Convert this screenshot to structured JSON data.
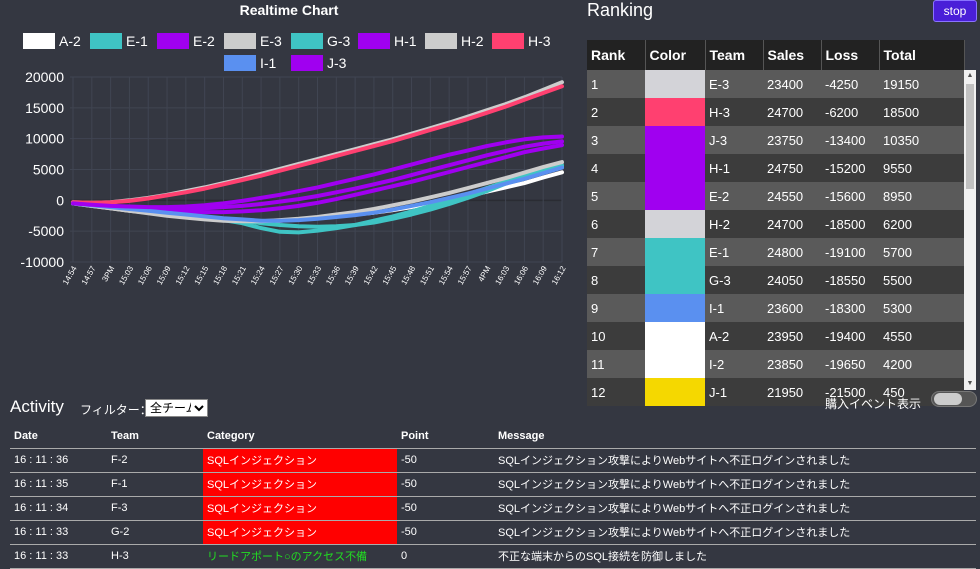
{
  "chart": {
    "title": "Realtime Chart"
  },
  "chart_data": {
    "type": "line",
    "title": "Realtime Chart",
    "ylim": [
      -10000,
      20000
    ],
    "y_ticks": [
      20000,
      15000,
      10000,
      5000,
      0,
      -5000,
      -10000
    ],
    "x_tick_labels": [
      "14:54",
      "14:57",
      "3PM",
      "15:03",
      "15:06",
      "15:09",
      "15:12",
      "15:15",
      "15:18",
      "15:21",
      "15:24",
      "15:27",
      "15:30",
      "15:33",
      "15:36",
      "15:39",
      "15:42",
      "15:45",
      "15:48",
      "15:51",
      "15:54",
      "15:57",
      "4PM",
      "16:03",
      "16:06",
      "16:09",
      "16:12"
    ],
    "legend_position": "top",
    "series": [
      {
        "name": "A-2",
        "color": "#ffffff",
        "values": [
          -500,
          -900,
          -1300,
          -1700,
          -2000,
          -2300,
          -2600,
          -2900,
          -3100,
          -3300,
          -3400,
          -3300,
          -3100,
          -2900,
          -2600,
          -2300,
          -2000,
          -1600,
          -1100,
          -500,
          100,
          700,
          1400,
          2100,
          2800,
          3700,
          4550
        ]
      },
      {
        "name": "E-1",
        "color": "#3fc4c4",
        "values": [
          -500,
          -900,
          -1200,
          -1500,
          -1800,
          -2100,
          -2400,
          -2700,
          -3000,
          -3300,
          -3700,
          -4000,
          -4200,
          -4300,
          -4200,
          -4000,
          -3600,
          -3000,
          -2300,
          -1500,
          -600,
          400,
          1500,
          2700,
          3800,
          4800,
          5700
        ]
      },
      {
        "name": "E-2",
        "color": "#a000f0",
        "values": [
          -500,
          -800,
          -1100,
          -1300,
          -1500,
          -1700,
          -1800,
          -1900,
          -1900,
          -1800,
          -1600,
          -1300,
          -900,
          -400,
          200,
          900,
          1600,
          2300,
          3000,
          3800,
          4600,
          5400,
          6200,
          7000,
          7800,
          8400,
          8950
        ]
      },
      {
        "name": "E-3",
        "color": "#cccccc",
        "values": [
          -300,
          -400,
          -300,
          0,
          400,
          900,
          1500,
          2100,
          2800,
          3500,
          4300,
          5100,
          5900,
          6700,
          7500,
          8300,
          9100,
          9900,
          10800,
          11700,
          12600,
          13600,
          14600,
          15600,
          16700,
          17900,
          19150
        ]
      },
      {
        "name": "G-3",
        "color": "#3fc4c4",
        "values": [
          -500,
          -800,
          -1100,
          -1400,
          -1700,
          -2000,
          -2400,
          -2800,
          -3200,
          -3700,
          -4500,
          -5100,
          -5200,
          -4900,
          -4500,
          -4000,
          -3300,
          -2600,
          -1800,
          -900,
          0,
          1000,
          2000,
          3000,
          4000,
          4800,
          5500
        ]
      },
      {
        "name": "H-1",
        "color": "#a000f0",
        "values": [
          -500,
          -700,
          -900,
          -1100,
          -1300,
          -1400,
          -1400,
          -1300,
          -1100,
          -900,
          -600,
          -200,
          200,
          700,
          1300,
          1900,
          2600,
          3300,
          4100,
          4900,
          5700,
          6500,
          7300,
          8000,
          8700,
          9200,
          9550
        ]
      },
      {
        "name": "H-2",
        "color": "#cccccc",
        "values": [
          -500,
          -900,
          -1300,
          -1700,
          -2100,
          -2500,
          -2800,
          -3100,
          -3300,
          -3400,
          -3400,
          -3200,
          -3000,
          -2700,
          -2300,
          -1900,
          -1400,
          -800,
          -200,
          500,
          1200,
          2000,
          2800,
          3600,
          4500,
          5400,
          6200
        ]
      },
      {
        "name": "H-3",
        "color": "#ff4070",
        "values": [
          -300,
          -400,
          -300,
          -100,
          300,
          800,
          1300,
          1900,
          2600,
          3300,
          4000,
          4800,
          5600,
          6400,
          7200,
          8000,
          8800,
          9600,
          10500,
          11400,
          12300,
          13200,
          14200,
          15200,
          16300,
          17400,
          18500
        ]
      },
      {
        "name": "I-1",
        "color": "#5a90f0",
        "values": [
          -500,
          -800,
          -1100,
          -1400,
          -1700,
          -2000,
          -2300,
          -2600,
          -2900,
          -3100,
          -3300,
          -3300,
          -3200,
          -3000,
          -2700,
          -2400,
          -2000,
          -1500,
          -900,
          -300,
          400,
          1100,
          1900,
          2700,
          3500,
          4400,
          5300
        ]
      },
      {
        "name": "J-3",
        "color": "#a000f0",
        "values": [
          -500,
          -700,
          -900,
          -1000,
          -1100,
          -1100,
          -1000,
          -800,
          -500,
          -100,
          400,
          900,
          1500,
          2100,
          2800,
          3500,
          4200,
          5000,
          5800,
          6600,
          7400,
          8100,
          8800,
          9400,
          9900,
          10200,
          10350
        ]
      }
    ]
  },
  "ranking": {
    "title": "Ranking",
    "headers": [
      "Rank",
      "Color",
      "Team",
      "Sales",
      "Loss",
      "Total"
    ],
    "rows": [
      {
        "rank": "1",
        "color": "#d3d3d8",
        "team": "E-3",
        "sales": "23400",
        "loss": "-4250",
        "total": "19150"
      },
      {
        "rank": "2",
        "color": "#ff4070",
        "team": "H-3",
        "sales": "24700",
        "loss": "-6200",
        "total": "18500"
      },
      {
        "rank": "3",
        "color": "#a000f0",
        "team": "J-3",
        "sales": "23750",
        "loss": "-13400",
        "total": "10350"
      },
      {
        "rank": "4",
        "color": "#a000f0",
        "team": "H-1",
        "sales": "24750",
        "loss": "-15200",
        "total": "9550"
      },
      {
        "rank": "5",
        "color": "#a000f0",
        "team": "E-2",
        "sales": "24550",
        "loss": "-15600",
        "total": "8950"
      },
      {
        "rank": "6",
        "color": "#d3d3d8",
        "team": "H-2",
        "sales": "24700",
        "loss": "-18500",
        "total": "6200"
      },
      {
        "rank": "7",
        "color": "#3fc4c4",
        "team": "E-1",
        "sales": "24800",
        "loss": "-19100",
        "total": "5700"
      },
      {
        "rank": "8",
        "color": "#3fc4c4",
        "team": "G-3",
        "sales": "24050",
        "loss": "-18550",
        "total": "5500"
      },
      {
        "rank": "9",
        "color": "#5a90f0",
        "team": "I-1",
        "sales": "23600",
        "loss": "-18300",
        "total": "5300"
      },
      {
        "rank": "10",
        "color": "#ffffff",
        "team": "A-2",
        "sales": "23950",
        "loss": "-19400",
        "total": "4550"
      },
      {
        "rank": "11",
        "color": "#ffffff",
        "team": "I-2",
        "sales": "23850",
        "loss": "-19650",
        "total": "4200"
      },
      {
        "rank": "12",
        "color": "#f5d800",
        "team": "J-1",
        "sales": "21950",
        "loss": "-21500",
        "total": "450"
      }
    ]
  },
  "controls": {
    "stop_label": "stop",
    "activity_title": "Activity",
    "filter_label": "フィルター：",
    "filter_value": "全チーム",
    "purchase_label": "購入イベント表示"
  },
  "activity": {
    "headers": [
      "Date",
      "Team",
      "Category",
      "Point",
      "Message"
    ],
    "rows": [
      {
        "date": "16 : 11 : 36",
        "team": "F-2",
        "category": "SQLインジェクション",
        "cat_color": "red",
        "point": "-50",
        "message": "SQLインジェクション攻撃によりWebサイトへ不正ログインされました"
      },
      {
        "date": "16 : 11 : 35",
        "team": "F-1",
        "category": "SQLインジェクション",
        "cat_color": "red",
        "point": "-50",
        "message": "SQLインジェクション攻撃によりWebサイトへ不正ログインされました"
      },
      {
        "date": "16 : 11 : 34",
        "team": "F-3",
        "category": "SQLインジェクション",
        "cat_color": "red",
        "point": "-50",
        "message": "SQLインジェクション攻撃によりWebサイトへ不正ログインされました"
      },
      {
        "date": "16 : 11 : 33",
        "team": "G-2",
        "category": "SQLインジェクション",
        "cat_color": "red",
        "point": "-50",
        "message": "SQLインジェクション攻撃によりWebサイトへ不正ログインされました"
      },
      {
        "date": "16 : 11 : 33",
        "team": "H-3",
        "category": "リードアポート○のアクセス不備",
        "cat_color": "green",
        "point": "0",
        "message": "不正な端末からのSQL接続を防御しました"
      }
    ]
  }
}
